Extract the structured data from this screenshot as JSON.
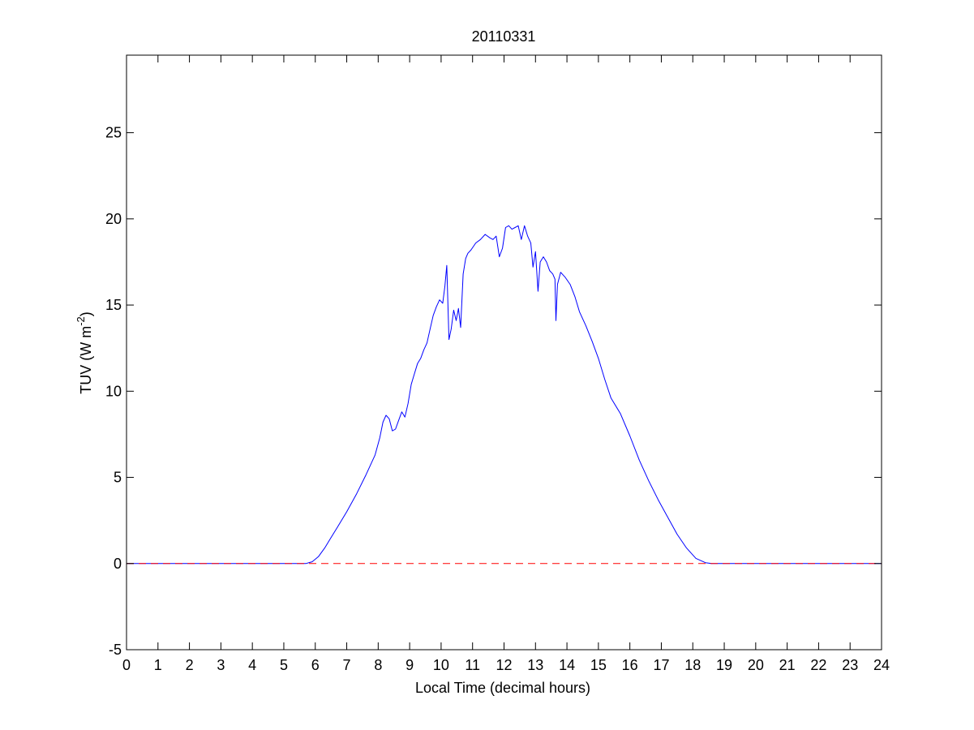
{
  "chart_data": {
    "type": "line",
    "title": "20110331",
    "xlabel": "Local Time (decimal hours)",
    "ylabel": {
      "base": "TUV (W m",
      "superscript": "-2",
      "tail": ")"
    },
    "xlim": [
      0,
      24
    ],
    "ylim": [
      -5,
      29.5
    ],
    "xticks": [
      0,
      1,
      2,
      3,
      4,
      5,
      6,
      7,
      8,
      9,
      10,
      11,
      12,
      13,
      14,
      15,
      16,
      17,
      18,
      19,
      20,
      21,
      22,
      23,
      24
    ],
    "yticks": [
      -5,
      0,
      5,
      10,
      15,
      20,
      25
    ],
    "grid": false,
    "series": [
      {
        "color": "#0000ff",
        "style": "solid",
        "x": [
          0,
          5.7,
          5.9,
          6.1,
          6.3,
          6.5,
          6.7,
          7.0,
          7.3,
          7.6,
          7.9,
          8.05,
          8.15,
          8.25,
          8.35,
          8.45,
          8.55,
          8.65,
          8.75,
          8.85,
          8.95,
          9.05,
          9.15,
          9.25,
          9.35,
          9.45,
          9.55,
          9.65,
          9.75,
          9.85,
          9.95,
          10.05,
          10.12,
          10.18,
          10.25,
          10.32,
          10.4,
          10.48,
          10.55,
          10.62,
          10.7,
          10.78,
          10.85,
          10.95,
          11.1,
          11.25,
          11.4,
          11.55,
          11.65,
          11.75,
          11.85,
          11.95,
          12.05,
          12.15,
          12.25,
          12.35,
          12.45,
          12.55,
          12.65,
          12.75,
          12.85,
          12.92,
          13.0,
          13.08,
          13.15,
          13.25,
          13.35,
          13.45,
          13.55,
          13.62,
          13.65,
          13.7,
          13.8,
          13.95,
          14.1,
          14.25,
          14.4,
          14.6,
          14.8,
          15.0,
          15.2,
          15.4,
          15.7,
          16.0,
          16.3,
          16.6,
          16.9,
          17.2,
          17.5,
          17.8,
          18.1,
          18.4,
          18.6,
          18.8,
          19.0,
          24
        ],
        "y": [
          0,
          0,
          0.1,
          0.4,
          0.9,
          1.5,
          2.1,
          3.0,
          4.0,
          5.1,
          6.3,
          7.3,
          8.2,
          8.6,
          8.4,
          7.7,
          7.8,
          8.3,
          8.8,
          8.5,
          9.3,
          10.4,
          11.0,
          11.6,
          11.9,
          12.4,
          12.8,
          13.6,
          14.4,
          14.9,
          15.3,
          15.1,
          16.1,
          17.3,
          13.0,
          13.6,
          14.7,
          14.1,
          14.8,
          13.7,
          16.8,
          17.7,
          18.0,
          18.2,
          18.6,
          18.8,
          19.1,
          18.9,
          18.8,
          19.0,
          17.8,
          18.3,
          19.5,
          19.6,
          19.4,
          19.5,
          19.6,
          18.8,
          19.6,
          19.0,
          18.6,
          17.2,
          18.1,
          15.8,
          17.5,
          17.8,
          17.5,
          17.0,
          16.8,
          16.5,
          14.1,
          16.2,
          16.9,
          16.6,
          16.2,
          15.5,
          14.6,
          13.8,
          12.9,
          11.9,
          10.7,
          9.6,
          8.7,
          7.4,
          6.0,
          4.8,
          3.7,
          2.7,
          1.7,
          0.9,
          0.3,
          0.05,
          0,
          0,
          0,
          0
        ]
      },
      {
        "color": "#ff0000",
        "style": "dashed",
        "x": [
          0,
          24
        ],
        "y": [
          0,
          0
        ]
      }
    ]
  }
}
